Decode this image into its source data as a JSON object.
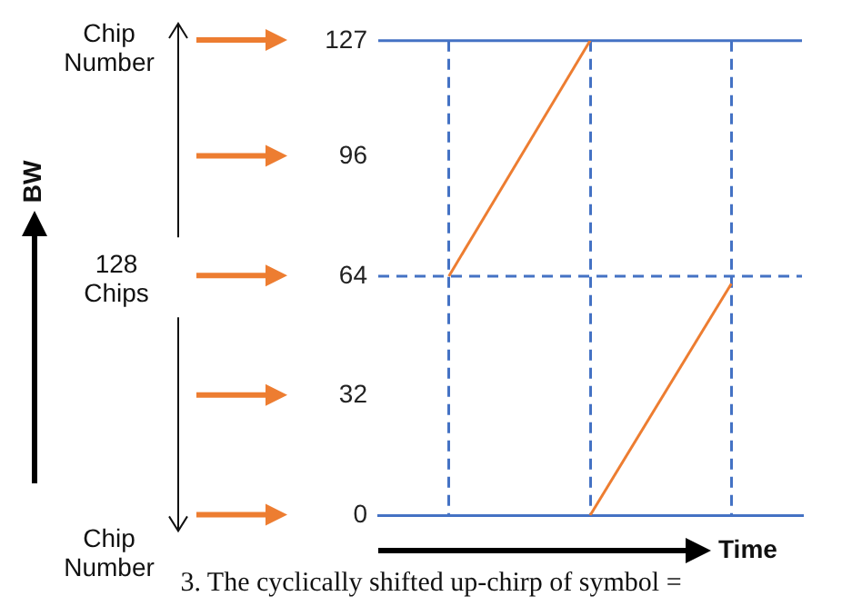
{
  "chart_data": {
    "type": "line",
    "xlabel": "Time",
    "categories": [
      null,
      null,
      null
    ],
    "series": [
      {
        "color": "#ed7d31",
        "values": [
          64,
          127,
          null
        ]
      },
      {
        "color": "#ed7d31",
        "values": [
          null,
          0,
          62
        ]
      }
    ],
    "ylim": [
      0,
      127
    ],
    "yticks": [
      0,
      32,
      64,
      96,
      127
    ],
    "grid": "x",
    "tick_labels": "y",
    "marker": "none",
    "ref_lines": [
      {
        "axis": "y",
        "value": 127,
        "color": "#4472c4",
        "line_style": "solid"
      },
      {
        "axis": "y",
        "value": 64,
        "color": "#4472c4",
        "line_style": "dashed"
      }
    ],
    "annotations": [
      "BW",
      "Chip Number",
      "128 Chips",
      "Chip Number",
      "3. The cyclically shifted up-chirp of symbol ="
    ]
  }
}
